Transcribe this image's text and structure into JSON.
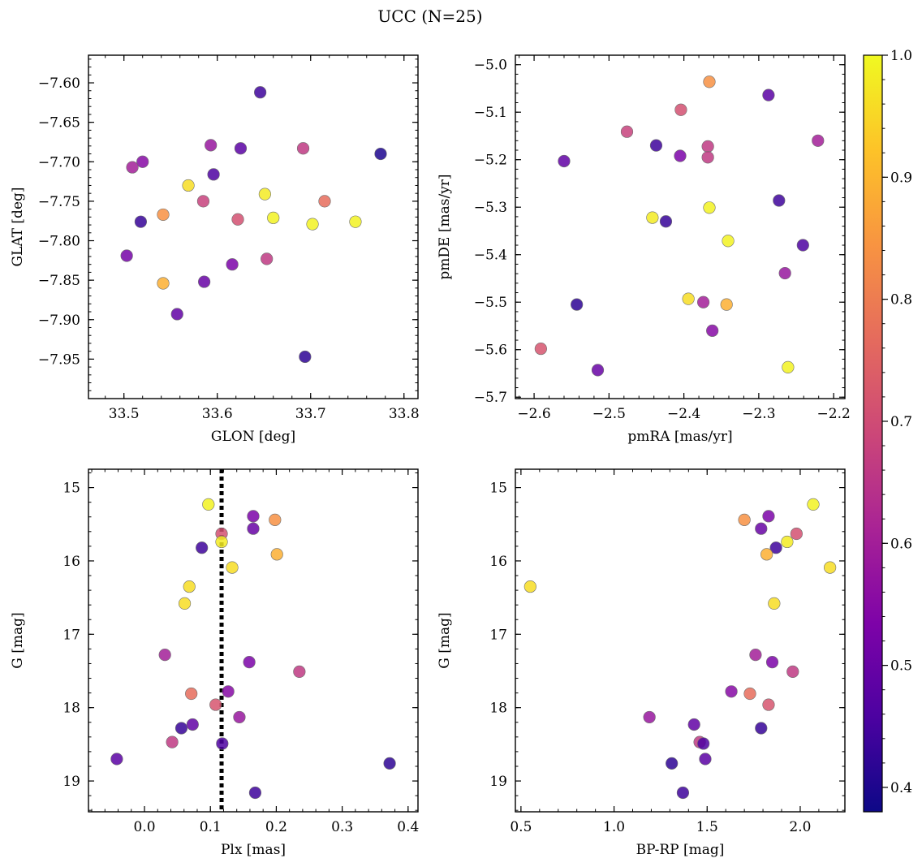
{
  "title": "UCC (N=25)",
  "colorbar": {
    "colormap": "plasma",
    "range": [
      0.38,
      1.0
    ],
    "ticks": [
      0.4,
      0.5,
      0.6,
      0.7,
      0.8,
      0.9,
      1.0
    ],
    "tick_labels": [
      "0.4",
      "0.5",
      "0.6",
      "0.7",
      "0.8",
      "0.9",
      "1.0"
    ]
  },
  "chart_data": [
    {
      "type": "scatter",
      "title": "",
      "xlabel": "GLON [deg]",
      "ylabel": "GLAT [deg]",
      "xlim": [
        33.462,
        33.815
      ],
      "ylim": [
        -8.0,
        -7.565
      ],
      "y_inverted": false,
      "xticks": [
        33.5,
        33.6,
        33.7,
        33.8
      ],
      "xtick_labels": [
        "33.5",
        "33.6",
        "33.7",
        "33.8"
      ],
      "yticks": [
        -7.6,
        -7.65,
        -7.7,
        -7.75,
        -7.8,
        -7.85,
        -7.9,
        -7.95
      ],
      "ytick_labels": [
        "−7.60",
        "−7.65",
        "−7.70",
        "−7.75",
        "−7.80",
        "−7.85",
        "−7.90",
        "−7.95"
      ],
      "points": [
        {
          "x": 33.646,
          "y": -7.612,
          "c": 0.44
        },
        {
          "x": 33.593,
          "y": -7.679,
          "c": 0.58
        },
        {
          "x": 33.625,
          "y": -7.683,
          "c": 0.48
        },
        {
          "x": 33.692,
          "y": -7.683,
          "c": 0.66
        },
        {
          "x": 33.775,
          "y": -7.69,
          "c": 0.4
        },
        {
          "x": 33.52,
          "y": -7.7,
          "c": 0.55
        },
        {
          "x": 33.509,
          "y": -7.707,
          "c": 0.6
        },
        {
          "x": 33.596,
          "y": -7.716,
          "c": 0.46
        },
        {
          "x": 33.569,
          "y": -7.73,
          "c": 0.96
        },
        {
          "x": 33.651,
          "y": -7.741,
          "c": 0.98
        },
        {
          "x": 33.585,
          "y": -7.75,
          "c": 0.68
        },
        {
          "x": 33.715,
          "y": -7.75,
          "c": 0.77
        },
        {
          "x": 33.542,
          "y": -7.767,
          "c": 0.84
        },
        {
          "x": 33.622,
          "y": -7.773,
          "c": 0.71
        },
        {
          "x": 33.66,
          "y": -7.771,
          "c": 0.99
        },
        {
          "x": 33.518,
          "y": -7.776,
          "c": 0.43
        },
        {
          "x": 33.748,
          "y": -7.776,
          "c": 0.99
        },
        {
          "x": 33.702,
          "y": -7.779,
          "c": 0.99
        },
        {
          "x": 33.503,
          "y": -7.819,
          "c": 0.52
        },
        {
          "x": 33.653,
          "y": -7.823,
          "c": 0.66
        },
        {
          "x": 33.616,
          "y": -7.83,
          "c": 0.53
        },
        {
          "x": 33.586,
          "y": -7.852,
          "c": 0.5
        },
        {
          "x": 33.542,
          "y": -7.854,
          "c": 0.89
        },
        {
          "x": 33.557,
          "y": -7.893,
          "c": 0.49
        },
        {
          "x": 33.694,
          "y": -7.947,
          "c": 0.42
        }
      ]
    },
    {
      "type": "scatter",
      "title": "",
      "xlabel": "pmRA [mas/yr]",
      "ylabel": "pmDE [mas/yr]",
      "xlim": [
        -2.625,
        -2.185
      ],
      "ylim": [
        -5.703,
        -4.98
      ],
      "y_inverted": false,
      "xticks": [
        -2.6,
        -2.5,
        -2.4,
        -2.3,
        -2.2
      ],
      "xtick_labels": [
        "−2.6",
        "−2.5",
        "−2.4",
        "−2.3",
        "−2.2"
      ],
      "yticks": [
        -5.0,
        -5.1,
        -5.2,
        -5.3,
        -5.4,
        -5.5,
        -5.6,
        -5.7
      ],
      "ytick_labels": [
        "−5.0",
        "−5.1",
        "−5.2",
        "−5.3",
        "−5.4",
        "−5.5",
        "−5.6",
        "−5.7"
      ],
      "points": [
        {
          "x": -2.366,
          "y": -5.036,
          "c": 0.84
        },
        {
          "x": -2.287,
          "y": -5.064,
          "c": 0.48
        },
        {
          "x": -2.404,
          "y": -5.095,
          "c": 0.71
        },
        {
          "x": -2.476,
          "y": -5.141,
          "c": 0.68
        },
        {
          "x": -2.221,
          "y": -5.16,
          "c": 0.6
        },
        {
          "x": -2.437,
          "y": -5.17,
          "c": 0.44
        },
        {
          "x": -2.368,
          "y": -5.172,
          "c": 0.66
        },
        {
          "x": -2.405,
          "y": -5.192,
          "c": 0.53
        },
        {
          "x": -2.368,
          "y": -5.195,
          "c": 0.66
        },
        {
          "x": -2.56,
          "y": -5.203,
          "c": 0.49
        },
        {
          "x": -2.273,
          "y": -5.286,
          "c": 0.44
        },
        {
          "x": -2.366,
          "y": -5.301,
          "c": 0.99
        },
        {
          "x": -2.442,
          "y": -5.322,
          "c": 0.98
        },
        {
          "x": -2.424,
          "y": -5.33,
          "c": 0.43
        },
        {
          "x": -2.341,
          "y": -5.371,
          "c": 0.99
        },
        {
          "x": -2.241,
          "y": -5.38,
          "c": 0.46
        },
        {
          "x": -2.265,
          "y": -5.439,
          "c": 0.58
        },
        {
          "x": -2.394,
          "y": -5.493,
          "c": 0.96
        },
        {
          "x": -2.374,
          "y": -5.5,
          "c": 0.6
        },
        {
          "x": -2.343,
          "y": -5.505,
          "c": 0.89
        },
        {
          "x": -2.543,
          "y": -5.505,
          "c": 0.42
        },
        {
          "x": -2.362,
          "y": -5.56,
          "c": 0.55
        },
        {
          "x": -2.591,
          "y": -5.598,
          "c": 0.72
        },
        {
          "x": -2.261,
          "y": -5.637,
          "c": 0.99
        },
        {
          "x": -2.515,
          "y": -5.643,
          "c": 0.5
        }
      ]
    },
    {
      "type": "scatter",
      "title": "",
      "xlabel": "Plx [mas]",
      "ylabel": "G [mag]",
      "xlim": [
        -0.085,
        0.415
      ],
      "ylim": [
        14.75,
        19.42
      ],
      "y_inverted": true,
      "xticks": [
        0.0,
        0.1,
        0.2,
        0.3,
        0.4
      ],
      "xtick_labels": [
        "0.0",
        "0.1",
        "0.2",
        "0.3",
        "0.4"
      ],
      "yticks": [
        15,
        16,
        17,
        18,
        19
      ],
      "ytick_labels": [
        "15",
        "16",
        "17",
        "18",
        "19"
      ],
      "vline": {
        "x": 0.117,
        "style": "dotted",
        "color": "#000000"
      },
      "points": [
        {
          "x": 0.097,
          "y": 15.23,
          "c": 0.99
        },
        {
          "x": 0.165,
          "y": 15.39,
          "c": 0.53
        },
        {
          "x": 0.198,
          "y": 15.44,
          "c": 0.84
        },
        {
          "x": 0.165,
          "y": 15.56,
          "c": 0.5
        },
        {
          "x": 0.117,
          "y": 15.63,
          "c": 0.71
        },
        {
          "x": 0.117,
          "y": 15.74,
          "c": 0.98
        },
        {
          "x": 0.087,
          "y": 15.82,
          "c": 0.44
        },
        {
          "x": 0.201,
          "y": 15.91,
          "c": 0.89
        },
        {
          "x": 0.133,
          "y": 16.09,
          "c": 0.96
        },
        {
          "x": 0.068,
          "y": 16.35,
          "c": 0.96
        },
        {
          "x": 0.061,
          "y": 16.58,
          "c": 0.96
        },
        {
          "x": 0.031,
          "y": 17.28,
          "c": 0.6
        },
        {
          "x": 0.159,
          "y": 17.38,
          "c": 0.53
        },
        {
          "x": 0.235,
          "y": 17.51,
          "c": 0.66
        },
        {
          "x": 0.127,
          "y": 17.78,
          "c": 0.55
        },
        {
          "x": 0.071,
          "y": 17.81,
          "c": 0.77
        },
        {
          "x": 0.108,
          "y": 17.96,
          "c": 0.72
        },
        {
          "x": 0.144,
          "y": 18.13,
          "c": 0.58
        },
        {
          "x": 0.073,
          "y": 18.23,
          "c": 0.49
        },
        {
          "x": 0.056,
          "y": 18.28,
          "c": 0.43
        },
        {
          "x": 0.042,
          "y": 18.47,
          "c": 0.66
        },
        {
          "x": 0.118,
          "y": 18.49,
          "c": 0.46
        },
        {
          "x": -0.042,
          "y": 18.7,
          "c": 0.48
        },
        {
          "x": 0.372,
          "y": 18.76,
          "c": 0.42
        },
        {
          "x": 0.168,
          "y": 19.16,
          "c": 0.44
        }
      ]
    },
    {
      "type": "scatter",
      "title": "",
      "xlabel": "BP-RP [mag]",
      "ylabel": "G [mag]",
      "xlim": [
        0.47,
        2.24
      ],
      "ylim": [
        14.75,
        19.42
      ],
      "y_inverted": true,
      "xticks": [
        0.5,
        1.0,
        1.5,
        2.0
      ],
      "xtick_labels": [
        "0.5",
        "1.0",
        "1.5",
        "2.0"
      ],
      "yticks": [
        15,
        16,
        17,
        18,
        19
      ],
      "ytick_labels": [
        "15",
        "16",
        "17",
        "18",
        "19"
      ],
      "points": [
        {
          "x": 2.07,
          "y": 15.23,
          "c": 0.99
        },
        {
          "x": 1.83,
          "y": 15.39,
          "c": 0.53
        },
        {
          "x": 1.7,
          "y": 15.44,
          "c": 0.84
        },
        {
          "x": 1.79,
          "y": 15.56,
          "c": 0.5
        },
        {
          "x": 1.98,
          "y": 15.63,
          "c": 0.71
        },
        {
          "x": 1.93,
          "y": 15.74,
          "c": 0.98
        },
        {
          "x": 1.87,
          "y": 15.82,
          "c": 0.44
        },
        {
          "x": 1.82,
          "y": 15.91,
          "c": 0.89
        },
        {
          "x": 2.16,
          "y": 16.09,
          "c": 0.96
        },
        {
          "x": 0.55,
          "y": 16.35,
          "c": 0.96
        },
        {
          "x": 1.86,
          "y": 16.58,
          "c": 0.96
        },
        {
          "x": 1.76,
          "y": 17.28,
          "c": 0.6
        },
        {
          "x": 1.85,
          "y": 17.38,
          "c": 0.53
        },
        {
          "x": 1.96,
          "y": 17.51,
          "c": 0.66
        },
        {
          "x": 1.63,
          "y": 17.78,
          "c": 0.55
        },
        {
          "x": 1.73,
          "y": 17.81,
          "c": 0.77
        },
        {
          "x": 1.83,
          "y": 17.96,
          "c": 0.72
        },
        {
          "x": 1.19,
          "y": 18.13,
          "c": 0.58
        },
        {
          "x": 1.43,
          "y": 18.23,
          "c": 0.49
        },
        {
          "x": 1.79,
          "y": 18.28,
          "c": 0.43
        },
        {
          "x": 1.46,
          "y": 18.47,
          "c": 0.66
        },
        {
          "x": 1.48,
          "y": 18.49,
          "c": 0.46
        },
        {
          "x": 1.49,
          "y": 18.7,
          "c": 0.48
        },
        {
          "x": 1.31,
          "y": 18.76,
          "c": 0.42
        },
        {
          "x": 1.37,
          "y": 19.16,
          "c": 0.44
        }
      ]
    }
  ]
}
